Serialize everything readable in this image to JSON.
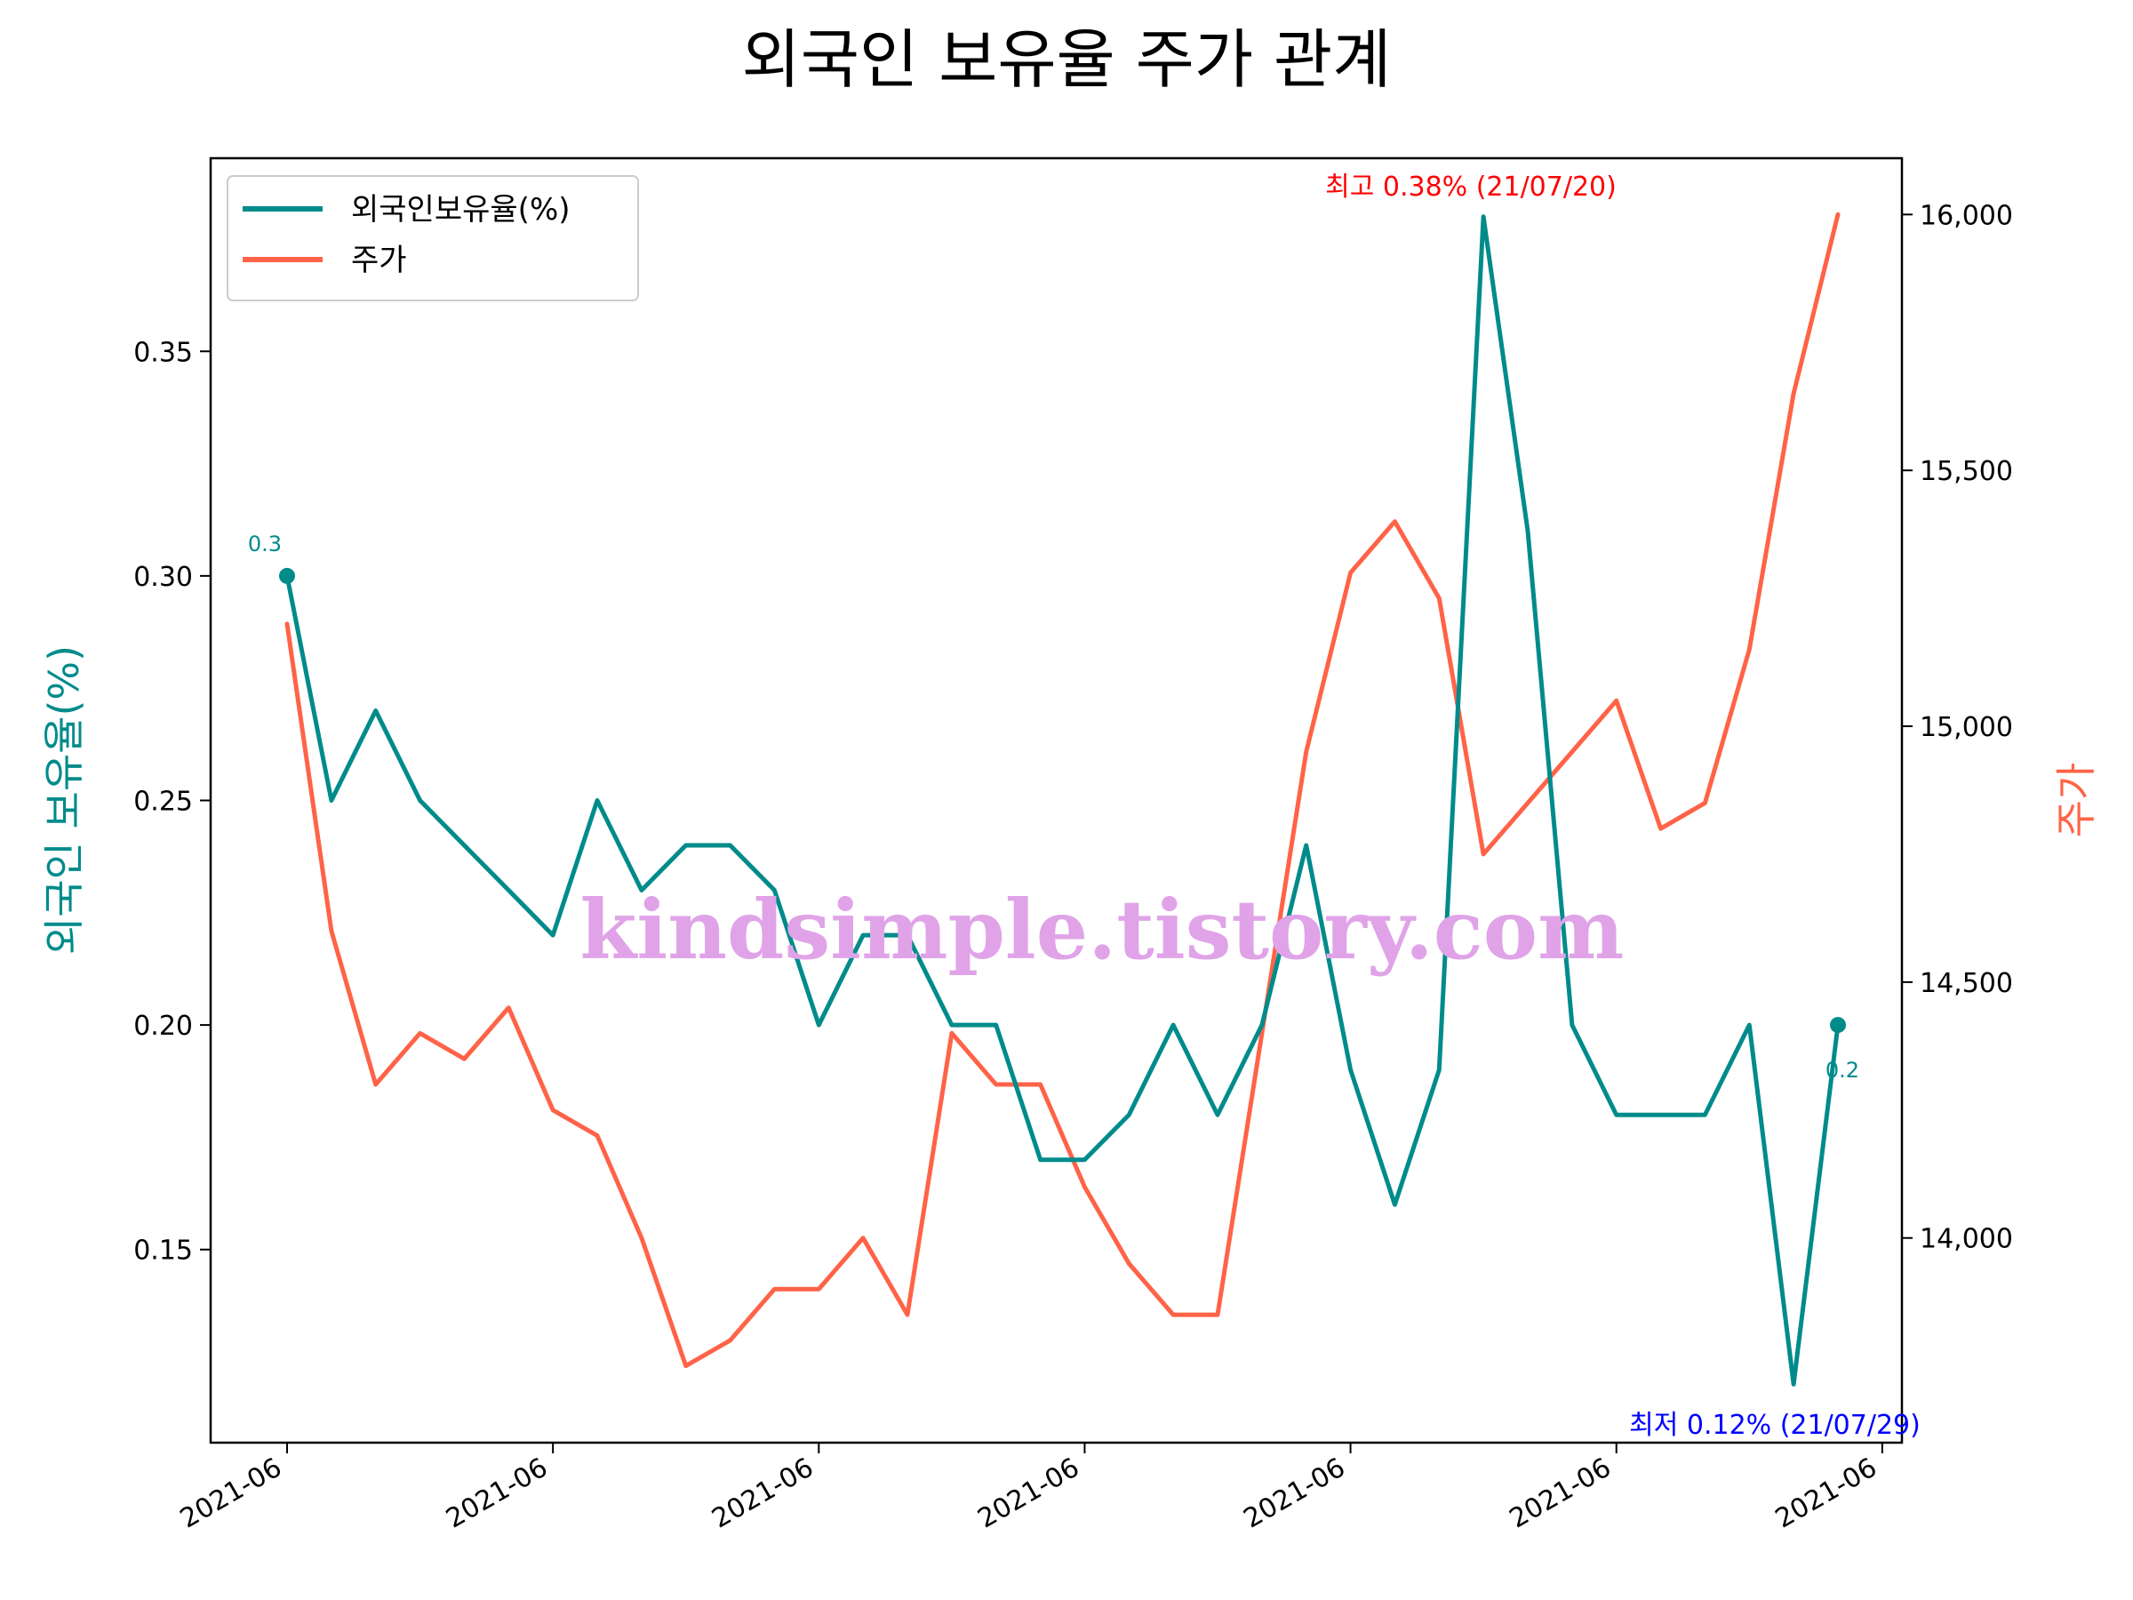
{
  "chart_data": {
    "type": "line",
    "title": "외국인 보유율 주가 관계",
    "ylabel_left": "외국인 보유율(%)",
    "ylabel_right": "주가",
    "x_tick_labels": [
      "2021-06",
      "2021-06",
      "2021-06",
      "2021-06",
      "2021-06",
      "2021-06",
      "2021-06"
    ],
    "y_left_ticks": [
      "0.15",
      "0.20",
      "0.25",
      "0.30",
      "0.35"
    ],
    "y_right_ticks": [
      "14,000",
      "14,500",
      "15,000",
      "15,500",
      "16,000"
    ],
    "ylim_left": [
      0.107,
      0.393
    ],
    "ylim_right": [
      13600,
      16110
    ],
    "legend_position": "top-left",
    "grid": false,
    "series": [
      {
        "name": "외국인보유율(%)",
        "axis": "left",
        "color": "#008b8b",
        "values": [
          0.3,
          0.25,
          0.27,
          0.25,
          0.24,
          0.23,
          0.22,
          0.25,
          0.23,
          0.24,
          0.24,
          0.23,
          0.2,
          0.22,
          0.22,
          0.2,
          0.2,
          0.17,
          0.17,
          0.18,
          0.2,
          0.18,
          0.2,
          0.24,
          0.19,
          0.16,
          0.19,
          0.38,
          0.31,
          0.2,
          0.18,
          0.18,
          0.18,
          0.2,
          0.12,
          0.2
        ]
      },
      {
        "name": "주가",
        "axis": "right",
        "color": "#ff6347",
        "values": [
          15200,
          14600,
          14300,
          14400,
          14350,
          14450,
          14250,
          14200,
          14000,
          13750,
          13800,
          13900,
          13900,
          14000,
          13850,
          14400,
          14300,
          14300,
          14100,
          13950,
          13850,
          13850,
          14400,
          14950,
          15300,
          15400,
          15250,
          14750,
          14850,
          14950,
          15050,
          14800,
          14850,
          15150,
          15650,
          16000
        ]
      }
    ],
    "annotations": {
      "max_text": "최고 0.38% (21/07/20)",
      "min_text": "최저 0.12% (21/07/29)",
      "start_label": "0.3",
      "end_label": "0.2",
      "max_color": "#ff0000",
      "min_color": "#0000ff"
    },
    "watermark": "kindsimple.tistory.com"
  }
}
